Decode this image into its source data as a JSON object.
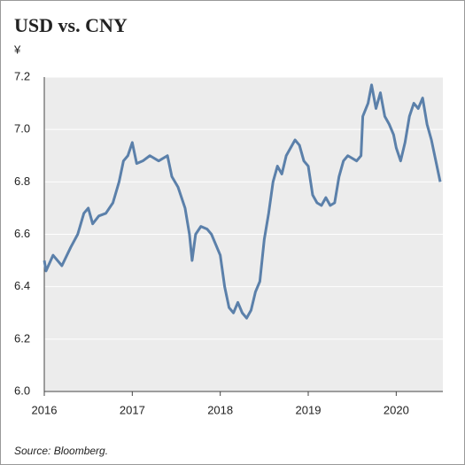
{
  "chart_data": {
    "type": "line",
    "title": "USD vs. CNY",
    "y_unit": "¥",
    "source": "Source: Bloomberg.",
    "x": [
      2016.0,
      2016.02,
      2016.1,
      2016.2,
      2016.3,
      2016.38,
      2016.45,
      2016.5,
      2016.55,
      2016.62,
      2016.7,
      2016.78,
      2016.85,
      2016.9,
      2016.95,
      2017.0,
      2017.05,
      2017.12,
      2017.2,
      2017.3,
      2017.4,
      2017.45,
      2017.52,
      2017.6,
      2017.65,
      2017.68,
      2017.72,
      2017.78,
      2017.85,
      2017.9,
      2017.95,
      2018.0,
      2018.05,
      2018.1,
      2018.15,
      2018.2,
      2018.25,
      2018.3,
      2018.35,
      2018.4,
      2018.45,
      2018.5,
      2018.55,
      2018.6,
      2018.65,
      2018.7,
      2018.75,
      2018.8,
      2018.85,
      2018.9,
      2018.95,
      2019.0,
      2019.05,
      2019.1,
      2019.15,
      2019.2,
      2019.25,
      2019.3,
      2019.35,
      2019.4,
      2019.45,
      2019.55,
      2019.6,
      2019.62,
      2019.68,
      2019.72,
      2019.77,
      2019.82,
      2019.87,
      2019.92,
      2019.97,
      2020.0,
      2020.05,
      2020.1,
      2020.15,
      2020.2,
      2020.25,
      2020.3,
      2020.35,
      2020.4,
      2020.45,
      2020.5
    ],
    "series": [
      {
        "name": "USD/CNY",
        "color": "#5b80aa",
        "values": [
          6.5,
          6.46,
          6.52,
          6.48,
          6.55,
          6.6,
          6.68,
          6.7,
          6.64,
          6.67,
          6.68,
          6.72,
          6.8,
          6.88,
          6.9,
          6.95,
          6.87,
          6.88,
          6.9,
          6.88,
          6.9,
          6.82,
          6.78,
          6.7,
          6.6,
          6.5,
          6.6,
          6.63,
          6.62,
          6.6,
          6.56,
          6.52,
          6.4,
          6.32,
          6.3,
          6.34,
          6.3,
          6.28,
          6.31,
          6.38,
          6.42,
          6.58,
          6.68,
          6.8,
          6.86,
          6.83,
          6.9,
          6.93,
          6.96,
          6.94,
          6.88,
          6.86,
          6.75,
          6.72,
          6.71,
          6.74,
          6.71,
          6.72,
          6.82,
          6.88,
          6.9,
          6.88,
          6.9,
          7.05,
          7.1,
          7.17,
          7.08,
          7.14,
          7.05,
          7.02,
          6.98,
          6.93,
          6.88,
          6.95,
          7.05,
          7.1,
          7.08,
          7.12,
          7.02,
          6.96,
          6.88,
          6.8
        ]
      }
    ],
    "xlim": [
      2016,
      2020.53
    ],
    "xticks": [
      2016,
      2017,
      2018,
      2019,
      2020
    ],
    "ylim": [
      6.0,
      7.2
    ],
    "yticks": [
      {
        "value": 6,
        "label": "6.0"
      },
      6.2,
      6.4,
      6.6,
      6.8,
      {
        "value": 7,
        "label": "7.0"
      },
      7.2
    ],
    "grid": true
  }
}
